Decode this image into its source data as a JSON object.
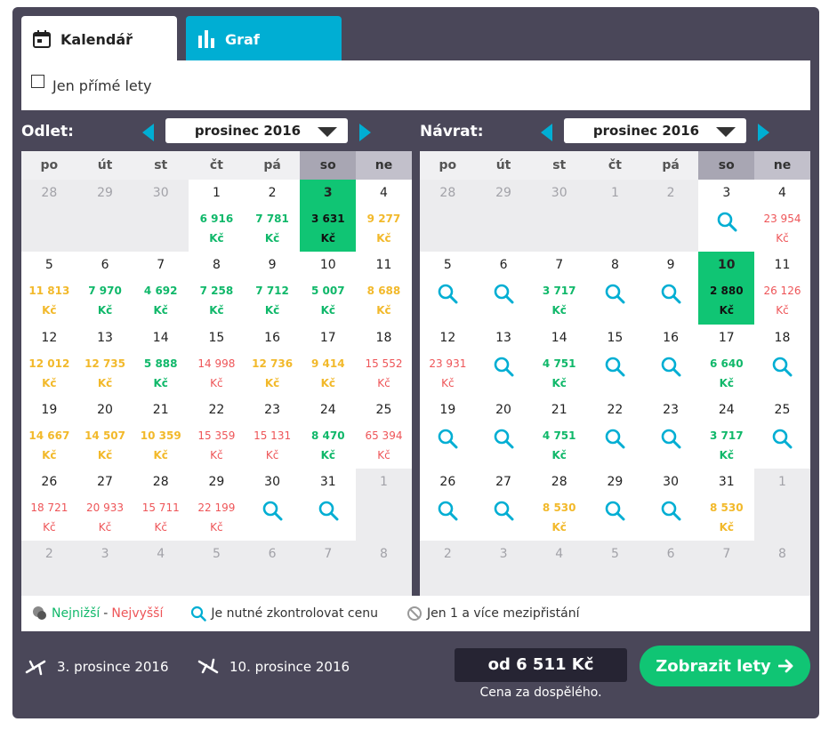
{
  "tabs": {
    "calendar": "Kalendář",
    "graph": "Graf"
  },
  "filter": {
    "direct_only": "Jen přímé lety"
  },
  "departure": {
    "label": "Odlet:",
    "month": "prosinec 2016",
    "weekdays": [
      "po",
      "út",
      "st",
      "čt",
      "pá",
      "so",
      "ne"
    ],
    "days": [
      {
        "d": "28",
        "out": true
      },
      {
        "d": "29",
        "out": true
      },
      {
        "d": "30",
        "out": true
      },
      {
        "d": "1",
        "p": "6 916",
        "c": "lo"
      },
      {
        "d": "2",
        "p": "7 781",
        "c": "lo"
      },
      {
        "d": "3",
        "p": "3 631",
        "c": "lo",
        "sel": true
      },
      {
        "d": "4",
        "p": "9 277",
        "c": "med"
      },
      {
        "d": "5",
        "p": "11 813",
        "c": "med"
      },
      {
        "d": "6",
        "p": "7 970",
        "c": "lo"
      },
      {
        "d": "7",
        "p": "4 692",
        "c": "lo"
      },
      {
        "d": "8",
        "p": "7 258",
        "c": "lo"
      },
      {
        "d": "9",
        "p": "7 712",
        "c": "lo"
      },
      {
        "d": "10",
        "p": "5 007",
        "c": "lo"
      },
      {
        "d": "11",
        "p": "8 688",
        "c": "med"
      },
      {
        "d": "12",
        "p": "12 012",
        "c": "med"
      },
      {
        "d": "13",
        "p": "12 735",
        "c": "med"
      },
      {
        "d": "14",
        "p": "5 888",
        "c": "lo"
      },
      {
        "d": "15",
        "p": "14 998",
        "c": "hi"
      },
      {
        "d": "16",
        "p": "12 736",
        "c": "med"
      },
      {
        "d": "17",
        "p": "9 414",
        "c": "med"
      },
      {
        "d": "18",
        "p": "15 552",
        "c": "hi"
      },
      {
        "d": "19",
        "p": "14 667",
        "c": "med"
      },
      {
        "d": "20",
        "p": "14 507",
        "c": "med"
      },
      {
        "d": "21",
        "p": "10 359",
        "c": "med"
      },
      {
        "d": "22",
        "p": "15 359",
        "c": "hi"
      },
      {
        "d": "23",
        "p": "15 131",
        "c": "hi"
      },
      {
        "d": "24",
        "p": "8 470",
        "c": "lo"
      },
      {
        "d": "25",
        "p": "65 394",
        "c": "hi"
      },
      {
        "d": "26",
        "p": "18 721",
        "c": "hi"
      },
      {
        "d": "27",
        "p": "20 933",
        "c": "hi"
      },
      {
        "d": "28",
        "p": "15 711",
        "c": "hi"
      },
      {
        "d": "29",
        "p": "22 199",
        "c": "hi"
      },
      {
        "d": "30",
        "search": true
      },
      {
        "d": "31",
        "search": true
      },
      {
        "d": "1",
        "out": true
      },
      {
        "d": "2",
        "out": true
      },
      {
        "d": "3",
        "out": true
      },
      {
        "d": "4",
        "out": true
      },
      {
        "d": "5",
        "out": true
      },
      {
        "d": "6",
        "out": true
      },
      {
        "d": "7",
        "out": true
      },
      {
        "d": "8",
        "out": true
      }
    ]
  },
  "return": {
    "label": "Návrat:",
    "month": "prosinec 2016",
    "weekdays": [
      "po",
      "út",
      "st",
      "čt",
      "pá",
      "so",
      "ne"
    ],
    "days": [
      {
        "d": "28",
        "out": true
      },
      {
        "d": "29",
        "out": true
      },
      {
        "d": "30",
        "out": true
      },
      {
        "d": "1",
        "out": true
      },
      {
        "d": "2",
        "out": true
      },
      {
        "d": "3",
        "search": true
      },
      {
        "d": "4",
        "p": "23 954",
        "c": "hi"
      },
      {
        "d": "5",
        "search": true
      },
      {
        "d": "6",
        "search": true
      },
      {
        "d": "7",
        "p": "3 717",
        "c": "lo"
      },
      {
        "d": "8",
        "search": true
      },
      {
        "d": "9",
        "search": true
      },
      {
        "d": "10",
        "p": "2 880",
        "c": "lo",
        "sel": true
      },
      {
        "d": "11",
        "p": "26 126",
        "c": "hi"
      },
      {
        "d": "12",
        "p": "23 931",
        "c": "hi"
      },
      {
        "d": "13",
        "search": true
      },
      {
        "d": "14",
        "p": "4 751",
        "c": "lo"
      },
      {
        "d": "15",
        "search": true
      },
      {
        "d": "16",
        "search": true
      },
      {
        "d": "17",
        "p": "6 640",
        "c": "lo"
      },
      {
        "d": "18",
        "search": true
      },
      {
        "d": "19",
        "search": true
      },
      {
        "d": "20",
        "search": true
      },
      {
        "d": "21",
        "p": "4 751",
        "c": "lo"
      },
      {
        "d": "22",
        "search": true
      },
      {
        "d": "23",
        "search": true
      },
      {
        "d": "24",
        "p": "3 717",
        "c": "lo"
      },
      {
        "d": "25",
        "search": true
      },
      {
        "d": "26",
        "search": true
      },
      {
        "d": "27",
        "search": true
      },
      {
        "d": "28",
        "p": "8 530",
        "c": "med"
      },
      {
        "d": "29",
        "search": true
      },
      {
        "d": "30",
        "search": true
      },
      {
        "d": "31",
        "p": "8 530",
        "c": "med"
      },
      {
        "d": "1",
        "out": true
      },
      {
        "d": "2",
        "out": true
      },
      {
        "d": "3",
        "out": true
      },
      {
        "d": "4",
        "out": true
      },
      {
        "d": "5",
        "out": true
      },
      {
        "d": "6",
        "out": true
      },
      {
        "d": "7",
        "out": true
      },
      {
        "d": "8",
        "out": true
      }
    ]
  },
  "currency": "Kč",
  "legend": {
    "lowest": "Nejnižší",
    "sep": "-",
    "highest": "Nejvyšší",
    "check_price": "Je nutné zkontrolovat cenu",
    "stops": "Jen 1 a více mezipřistání"
  },
  "colors": {
    "lowest": "#10b86a",
    "medium": "#f2b92b",
    "highest": "#ee5558",
    "accent": "#00aed3",
    "selected": "#10c574"
  },
  "footer": {
    "departure_date": "3. prosince 2016",
    "return_date": "10. prosince 2016",
    "price": "od 6 511 Kč",
    "price_note": "Cena za dospělého.",
    "show_button": "Zobrazit lety"
  }
}
